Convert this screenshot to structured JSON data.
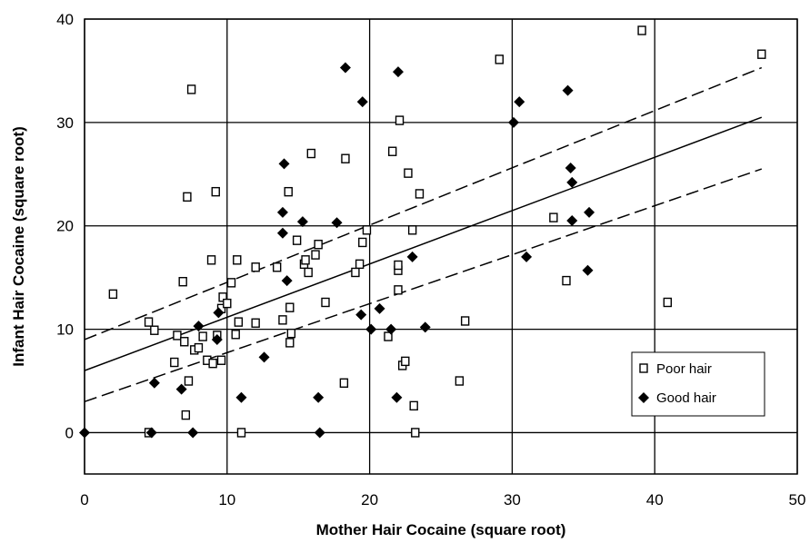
{
  "chart_data": {
    "type": "scatter",
    "title": "",
    "xlabel": "Mother Hair Cocaine (square root)",
    "ylabel": "Infant Hair Cocaine (square root)",
    "xlim": [
      0,
      50
    ],
    "ylim": [
      -4,
      40
    ],
    "xticks": [
      0,
      10,
      20,
      30,
      40,
      50
    ],
    "yticks": [
      0,
      10,
      20,
      30,
      40
    ],
    "grid": true,
    "legend": "bottom-right",
    "series": [
      {
        "name": "Poor hair",
        "marker": "hollow-square",
        "color": "#000000",
        "points": [
          [
            2,
            13.4
          ],
          [
            4.5,
            10.7
          ],
          [
            4.5,
            0
          ],
          [
            4.9,
            9.9
          ],
          [
            6.3,
            6.8
          ],
          [
            6.5,
            9.4
          ],
          [
            6.9,
            14.6
          ],
          [
            7.0,
            8.8
          ],
          [
            7.1,
            1.7
          ],
          [
            7.2,
            22.8
          ],
          [
            7.3,
            5.0
          ],
          [
            7.5,
            33.2
          ],
          [
            7.7,
            8.0
          ],
          [
            8.0,
            8.2
          ],
          [
            8.3,
            9.3
          ],
          [
            8.6,
            7.0
          ],
          [
            8.9,
            16.7
          ],
          [
            9.0,
            6.7
          ],
          [
            9.2,
            23.3
          ],
          [
            9.3,
            9.4
          ],
          [
            9.6,
            12.0
          ],
          [
            9.6,
            7.0
          ],
          [
            9.7,
            13.1
          ],
          [
            10.0,
            12.5
          ],
          [
            10.3,
            14.5
          ],
          [
            10.6,
            9.5
          ],
          [
            10.7,
            16.7
          ],
          [
            10.8,
            10.7
          ],
          [
            11.0,
            0
          ],
          [
            12.0,
            10.6
          ],
          [
            12.0,
            16.0
          ],
          [
            13.5,
            16.0
          ],
          [
            13.9,
            10.9
          ],
          [
            14.3,
            23.3
          ],
          [
            14.4,
            12.1
          ],
          [
            14.5,
            9.6
          ],
          [
            14.4,
            8.7
          ],
          [
            14.9,
            18.6
          ],
          [
            15.4,
            16.3
          ],
          [
            15.5,
            16.7
          ],
          [
            15.7,
            15.5
          ],
          [
            15.9,
            27.0
          ],
          [
            16.2,
            17.2
          ],
          [
            16.4,
            18.2
          ],
          [
            16.9,
            12.6
          ],
          [
            18.2,
            4.8
          ],
          [
            18.3,
            26.5
          ],
          [
            19.0,
            15.5
          ],
          [
            19.3,
            16.3
          ],
          [
            19.5,
            18.4
          ],
          [
            19.8,
            19.6
          ],
          [
            21.3,
            9.3
          ],
          [
            21.6,
            27.2
          ],
          [
            22.0,
            15.7
          ],
          [
            22.0,
            16.2
          ],
          [
            22.0,
            13.8
          ],
          [
            22.1,
            30.2
          ],
          [
            22.3,
            6.5
          ],
          [
            22.5,
            6.9
          ],
          [
            22.7,
            25.1
          ],
          [
            23.0,
            19.6
          ],
          [
            23.1,
            2.6
          ],
          [
            23.2,
            0
          ],
          [
            23.5,
            23.1
          ],
          [
            26.3,
            5.0
          ],
          [
            26.7,
            10.8
          ],
          [
            29.1,
            36.1
          ],
          [
            32.9,
            20.8
          ],
          [
            33.8,
            14.7
          ],
          [
            39.1,
            38.9
          ],
          [
            40.9,
            12.6
          ],
          [
            47.5,
            36.6
          ]
        ]
      },
      {
        "name": "Good hair",
        "marker": "filled-diamond",
        "color": "#000000",
        "points": [
          [
            0,
            0
          ],
          [
            4.7,
            0
          ],
          [
            4.9,
            4.8
          ],
          [
            6.8,
            4.2
          ],
          [
            7.6,
            0
          ],
          [
            8.0,
            10.3
          ],
          [
            9.3,
            9.0
          ],
          [
            9.4,
            11.6
          ],
          [
            11.0,
            3.4
          ],
          [
            12.6,
            7.3
          ],
          [
            13.9,
            21.3
          ],
          [
            14.0,
            26.0
          ],
          [
            13.9,
            19.3
          ],
          [
            14.2,
            14.7
          ],
          [
            15.3,
            20.4
          ],
          [
            16.4,
            3.4
          ],
          [
            16.5,
            0
          ],
          [
            17.7,
            20.3
          ],
          [
            18.3,
            35.3
          ],
          [
            19.5,
            32.0
          ],
          [
            19.4,
            11.4
          ],
          [
            20.1,
            10.0
          ],
          [
            20.7,
            12.0
          ],
          [
            21.5,
            10.0
          ],
          [
            21.9,
            3.4
          ],
          [
            22.0,
            34.9
          ],
          [
            23.0,
            17.0
          ],
          [
            23.9,
            10.2
          ],
          [
            30.1,
            30.0
          ],
          [
            30.5,
            32.0
          ],
          [
            31.0,
            17.0
          ],
          [
            33.9,
            33.1
          ],
          [
            34.1,
            25.6
          ],
          [
            34.2,
            24.2
          ],
          [
            34.2,
            20.5
          ],
          [
            35.4,
            21.3
          ],
          [
            35.3,
            15.7
          ]
        ]
      }
    ],
    "lines": [
      {
        "name": "fit",
        "style": "solid",
        "from": [
          0,
          6.0
        ],
        "to": [
          47.5,
          30.5
        ]
      },
      {
        "name": "upper-bound",
        "style": "dashed",
        "from": [
          0,
          9.0
        ],
        "to": [
          47.5,
          35.3
        ]
      },
      {
        "name": "lower-bound",
        "style": "dashed",
        "from": [
          0,
          3.0
        ],
        "to": [
          47.5,
          25.5
        ]
      }
    ]
  }
}
